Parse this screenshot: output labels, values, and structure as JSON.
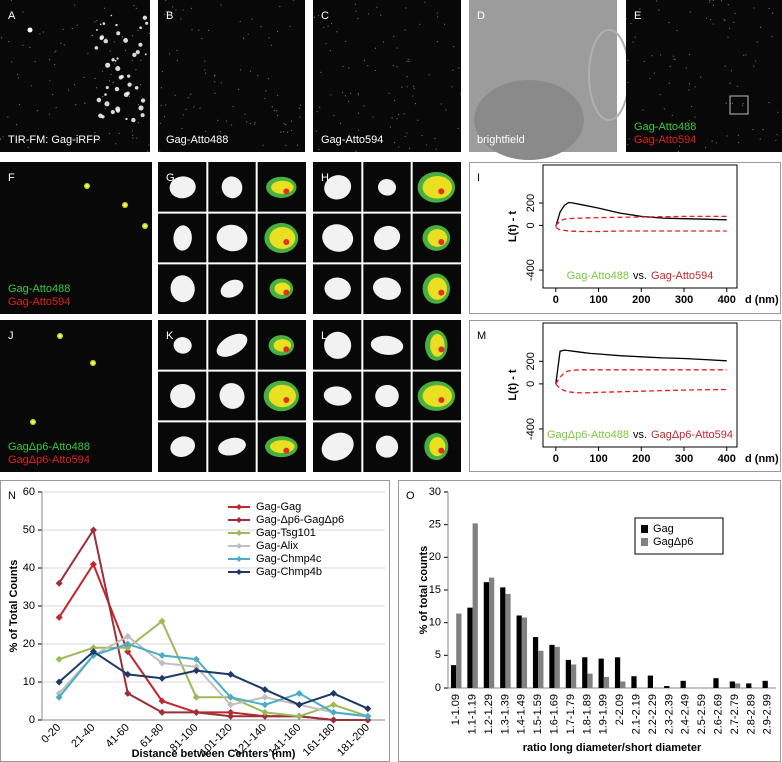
{
  "panels": [
    {
      "label": "A",
      "texts": [
        {
          "text": "TIR-FM: Gag-iRFP",
          "color": "#ffffff"
        }
      ]
    },
    {
      "label": "B",
      "texts": [
        {
          "text": "Gag-Atto488",
          "color": "#ffffff"
        }
      ]
    },
    {
      "label": "C",
      "texts": [
        {
          "text": "Gag-Atto594",
          "color": "#ffffff"
        }
      ]
    },
    {
      "label": "D",
      "texts": [
        {
          "text": "brightfield",
          "color": "#ffffff"
        }
      ]
    },
    {
      "label": "E",
      "texts": [
        {
          "text": "Gag-Atto488",
          "color": "#3cc83c"
        },
        {
          "text": "Gag-Atto594",
          "color": "#e02020"
        }
      ]
    },
    {
      "label": "F",
      "texts": [
        {
          "text": "Gag-Atto488",
          "color": "#3cc83c"
        },
        {
          "text": "Gag-Atto594",
          "color": "#e02020"
        }
      ]
    },
    {
      "label": "G"
    },
    {
      "label": "H"
    },
    {
      "label": "J",
      "texts": [
        {
          "text": "GagΔp6-Atto488",
          "color": "#3cc83c"
        },
        {
          "text": "GagΔp6-Atto594",
          "color": "#e02020"
        }
      ]
    },
    {
      "label": "K"
    },
    {
      "label": "L"
    }
  ],
  "chart_data": [
    {
      "type": "line",
      "label": "I",
      "x": [
        0,
        10,
        20,
        30,
        40,
        60,
        80,
        100,
        150,
        200,
        250,
        300,
        350,
        400
      ],
      "xlim": [
        -30,
        424
      ],
      "ylim": [
        -560,
        540
      ],
      "xticks": [
        0,
        100,
        200,
        300,
        400
      ],
      "yticks": [
        -400,
        0,
        200
      ],
      "xlabel": "d (nm)",
      "ylabel": "L(t) - t",
      "annotations": [
        {
          "text": "Gag-Atto488",
          "color": "#7ac943"
        },
        {
          "text": "vs.",
          "color": "#000000"
        },
        {
          "text": "Gag-Atto594",
          "color": "#c0282d"
        }
      ],
      "series": [
        {
          "color": "#000000",
          "dash": false,
          "values": [
            -10,
            120,
            180,
            205,
            200,
            185,
            170,
            155,
            110,
            80,
            65,
            60,
            55,
            50
          ]
        },
        {
          "color": "#e02020",
          "dash": true,
          "values": [
            0,
            40,
            55,
            60,
            62,
            65,
            68,
            70,
            72,
            75,
            78,
            80,
            80,
            80
          ]
        },
        {
          "color": "#e02020",
          "dash": true,
          "values": [
            -20,
            -40,
            -45,
            -50,
            -52,
            -55,
            -55,
            -55,
            -50,
            -50,
            -50,
            -50,
            -50,
            -50
          ]
        }
      ]
    },
    {
      "type": "line",
      "label": "M",
      "x": [
        0,
        10,
        20,
        30,
        40,
        60,
        80,
        100,
        150,
        200,
        250,
        300,
        350,
        400
      ],
      "xlim": [
        -30,
        424
      ],
      "ylim": [
        -560,
        540
      ],
      "xticks": [
        0,
        100,
        200,
        300,
        400
      ],
      "yticks": [
        -400,
        0,
        200
      ],
      "xlabel": "d (nm)",
      "ylabel": "L(t) - t",
      "annotations": [
        {
          "text": "GagΔp6-Atto488",
          "color": "#7ac943"
        },
        {
          "text": "vs.",
          "color": "#000000"
        },
        {
          "text": "GagΔp6-Atto594",
          "color": "#c0282d"
        }
      ],
      "series": [
        {
          "color": "#000000",
          "dash": false,
          "values": [
            0,
            290,
            300,
            295,
            290,
            280,
            270,
            265,
            250,
            240,
            230,
            225,
            215,
            205
          ]
        },
        {
          "color": "#e02020",
          "dash": true,
          "values": [
            0,
            60,
            100,
            115,
            120,
            125,
            125,
            125,
            125,
            125,
            125,
            125,
            125,
            125
          ]
        },
        {
          "color": "#e02020",
          "dash": true,
          "values": [
            0,
            -40,
            -60,
            -70,
            -75,
            -80,
            -78,
            -75,
            -70,
            -65,
            -60,
            -55,
            -52,
            -50
          ]
        }
      ]
    },
    {
      "type": "line",
      "label": "N",
      "categories": [
        "0-20",
        "21-40",
        "41-60",
        "61-80",
        "81-100",
        "101-120",
        "121-140",
        "141-160",
        "161-180",
        "181-200"
      ],
      "ylim": [
        0,
        60
      ],
      "yticks": [
        0,
        10,
        20,
        30,
        40,
        50,
        60
      ],
      "grid": true,
      "xlabel": "Distance between Centers (nm)",
      "ylabel": "% of Total Counts",
      "series": [
        {
          "name": "Gag-Gag",
          "color": "#c0282d",
          "values": [
            27,
            41,
            18,
            5,
            2,
            2,
            1,
            1,
            0,
            0
          ]
        },
        {
          "name": "Gag-Δp6-GagΔp6",
          "color": "#9b2f3a",
          "values": [
            36,
            50,
            7,
            2,
            2,
            1,
            1,
            1,
            0,
            0
          ]
        },
        {
          "name": "Gag-Tsg101",
          "color": "#9bbb59",
          "values": [
            16,
            19,
            19,
            26,
            6,
            6,
            2,
            1,
            4,
            1
          ]
        },
        {
          "name": "Gag-Alix",
          "color": "#bfbfbf",
          "values": [
            7,
            17,
            22,
            15,
            14,
            4,
            6,
            4,
            2,
            1
          ]
        },
        {
          "name": "Gag-Chmp4c",
          "color": "#4bacc6",
          "values": [
            6,
            17,
            20,
            17,
            16,
            6,
            4,
            7,
            2,
            1
          ]
        },
        {
          "name": "Gag-Chmp4b",
          "color": "#1f3864",
          "values": [
            10,
            18,
            12,
            11,
            13,
            12,
            8,
            4,
            7,
            3
          ]
        }
      ]
    },
    {
      "type": "bar",
      "label": "O",
      "categories": [
        "1-1.09",
        "1.1-1.19",
        "1.2-1.29",
        "1.3-1.39",
        "1.4-1.49",
        "1.5-1.59",
        "1.6-1.69",
        "1.7-1.79",
        "1.8-1.89",
        "1.9-1.99",
        "2-2.09",
        "2.1-2.19",
        "2.2-2.29",
        "2.3-2.39",
        "2.4-2.49",
        "2.5-2.59",
        "2.6-2.69",
        "2.7-2.79",
        "2.8-2.89",
        "2.9-2.99"
      ],
      "ylim": [
        0,
        30
      ],
      "yticks": [
        0,
        5,
        10,
        15,
        20,
        25,
        30
      ],
      "grid": false,
      "xlabel": "ratio long diameter/short diameter",
      "ylabel": "% of total counts",
      "series": [
        {
          "name": "Gag",
          "color": "#000000",
          "values": [
            3.5,
            12.3,
            16.2,
            15.4,
            11.1,
            7.8,
            6.6,
            4.3,
            4.7,
            4.5,
            4.7,
            1.8,
            1.9,
            0.3,
            1.1,
            0,
            1.5,
            1.0,
            0.7,
            1.1
          ]
        },
        {
          "name": "GagΔp6",
          "color": "#808080",
          "values": [
            11.4,
            25.2,
            16.9,
            14.4,
            10.8,
            5.7,
            6.3,
            3.6,
            2.2,
            1.7,
            1.0,
            0,
            0,
            0,
            0,
            0,
            0,
            0.7,
            0,
            0
          ]
        }
      ]
    }
  ]
}
